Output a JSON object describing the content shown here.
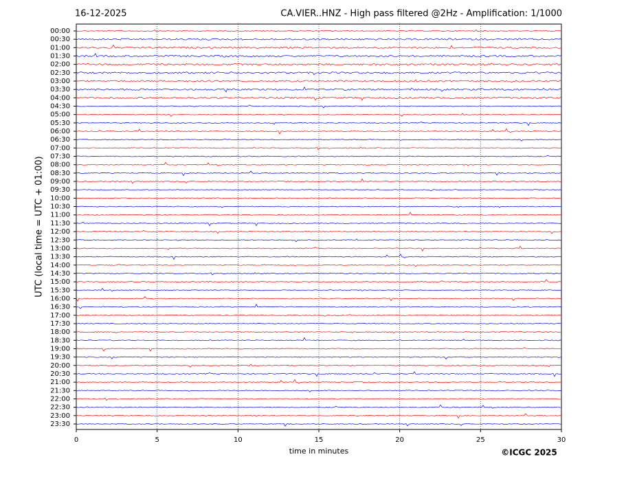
{
  "chart_data": {
    "type": "helicorder",
    "date": "16-12-2025",
    "title": "CA.VIER..HNZ - High pass filtered @2Hz - Amplification: 1/1000",
    "y_label": "UTC (local time = UTC + 01:00)",
    "x_label": "time in minutes",
    "copyright": "©ICGC 2025",
    "categories": [
      "00:00",
      "00:30",
      "01:00",
      "01:30",
      "02:00",
      "02:30",
      "03:00",
      "03:30",
      "04:00",
      "04:30",
      "05:00",
      "05:30",
      "06:00",
      "06:30",
      "07:00",
      "07:30",
      "08:00",
      "08:30",
      "09:00",
      "09:30",
      "10:00",
      "10:30",
      "11:00",
      "11:30",
      "12:00",
      "12:30",
      "13:00",
      "13:30",
      "14:00",
      "14:30",
      "15:00",
      "15:30",
      "16:00",
      "16:30",
      "17:00",
      "17:30",
      "18:00",
      "18:30",
      "19:00",
      "19:30",
      "20:00",
      "20:30",
      "21:00",
      "21:30",
      "22:00",
      "22:30",
      "23:00",
      "23:30"
    ],
    "colors": [
      "#ff0000",
      "#0000ff"
    ],
    "xlim": [
      0,
      30
    ],
    "xticks": [
      0,
      5,
      10,
      15,
      20,
      25,
      30
    ],
    "grid": true
  }
}
